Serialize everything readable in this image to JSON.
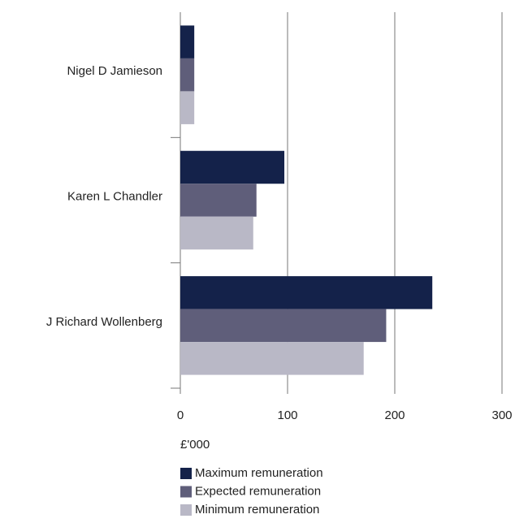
{
  "chart_data": {
    "type": "barh",
    "categories": [
      "Nigel D Jamieson",
      "Karen L Chandler",
      "J Richard Wollenberg"
    ],
    "series": [
      {
        "name": "Maximum remuneration",
        "color": "#14224a",
        "values": [
          13,
          97,
          235
        ]
      },
      {
        "name": "Expected remuneration",
        "color": "#5f5e7a",
        "values": [
          13,
          71,
          192
        ]
      },
      {
        "name": "Minimum remuneration",
        "color": "#b9b8c6",
        "values": [
          13,
          68,
          171
        ]
      }
    ],
    "xlabel": "£'000",
    "xlim": [
      0,
      300
    ],
    "xticks": [
      0,
      100,
      200,
      300
    ],
    "grid": true
  }
}
